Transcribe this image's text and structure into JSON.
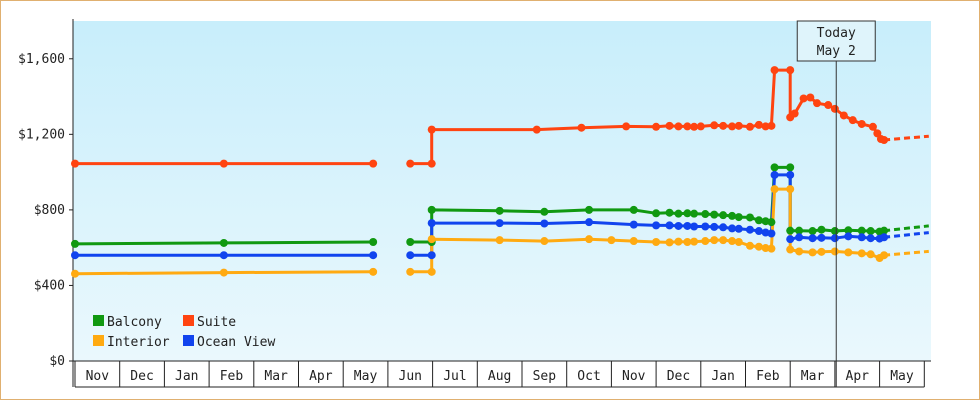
{
  "chart_data": {
    "type": "line",
    "title": "",
    "xlabel": "",
    "ylabel": "",
    "ylim": [
      0,
      1800
    ],
    "y_ticks": [
      {
        "value": 0,
        "label": "$0"
      },
      {
        "value": 400,
        "label": "$400"
      },
      {
        "value": 800,
        "label": "$800"
      },
      {
        "value": 1200,
        "label": "$1,200"
      },
      {
        "value": 1600,
        "label": "$1,600"
      }
    ],
    "x_months": [
      "Nov",
      "Dec",
      "Jan",
      "Feb",
      "Mar",
      "Apr",
      "May",
      "Jun",
      "Jul",
      "Aug",
      "Sep",
      "Oct",
      "Nov",
      "Dec",
      "Jan",
      "Feb",
      "Mar",
      "Apr",
      "May"
    ],
    "today_label": {
      "line1": "Today",
      "line2": "May 2"
    },
    "today_x": 17.03,
    "grid": false,
    "background": {
      "top": "#c8eefb",
      "bottom": "#eaf8fd"
    },
    "legend_position": "bottom-left",
    "series": [
      {
        "name": "Suite",
        "color": "#ff4411",
        "segments": [
          [
            [
              0,
              1045
            ],
            [
              3.33,
              1045
            ],
            [
              6.67,
              1045
            ]
          ],
          [
            [
              7.5,
              1045
            ],
            [
              7.98,
              1045
            ],
            [
              7.98,
              1225
            ],
            [
              10.33,
              1225
            ],
            [
              11.33,
              1235
            ],
            [
              12.33,
              1242
            ],
            [
              13,
              1240
            ],
            [
              13.3,
              1245
            ],
            [
              13.5,
              1242
            ],
            [
              13.7,
              1242
            ],
            [
              13.85,
              1240
            ],
            [
              14,
              1242
            ],
            [
              14.3,
              1248
            ],
            [
              14.5,
              1245
            ],
            [
              14.7,
              1242
            ],
            [
              14.85,
              1245
            ],
            [
              15.1,
              1240
            ],
            [
              15.3,
              1250
            ],
            [
              15.45,
              1242
            ],
            [
              15.58,
              1245
            ],
            [
              15.65,
              1540
            ],
            [
              16,
              1540
            ],
            [
              16,
              1290
            ],
            [
              16.1,
              1310
            ],
            [
              16.3,
              1390
            ],
            [
              16.45,
              1395
            ],
            [
              16.6,
              1365
            ],
            [
              16.85,
              1355
            ],
            [
              17,
              1335
            ],
            [
              17.2,
              1300
            ],
            [
              17.4,
              1275
            ],
            [
              17.6,
              1255
            ],
            [
              17.85,
              1240
            ],
            [
              17.95,
              1205
            ],
            [
              18.03,
              1175
            ],
            [
              18.1,
              1170
            ]
          ]
        ],
        "forecast": [
          [
            18.1,
            1170
          ],
          [
            19.1,
            1190
          ]
        ]
      },
      {
        "name": "Balcony",
        "color": "#119911",
        "segments": [
          [
            [
              0,
              620
            ],
            [
              3.33,
              625
            ],
            [
              6.67,
              630
            ]
          ],
          [
            [
              7.5,
              630
            ],
            [
              7.98,
              630
            ],
            [
              7.98,
              800
            ],
            [
              9.5,
              795
            ],
            [
              10.5,
              790
            ],
            [
              11.5,
              800
            ],
            [
              12.5,
              800
            ],
            [
              13,
              782
            ],
            [
              13.3,
              785
            ],
            [
              13.5,
              780
            ],
            [
              13.7,
              782
            ],
            [
              13.85,
              780
            ],
            [
              14.1,
              778
            ],
            [
              14.3,
              775
            ],
            [
              14.5,
              772
            ],
            [
              14.7,
              768
            ],
            [
              14.85,
              762
            ],
            [
              15.1,
              760
            ],
            [
              15.3,
              745
            ],
            [
              15.45,
              740
            ],
            [
              15.58,
              735
            ],
            [
              15.65,
              1025
            ],
            [
              16,
              1025
            ],
            [
              16,
              690
            ],
            [
              16.2,
              690
            ],
            [
              16.5,
              688
            ],
            [
              16.7,
              695
            ],
            [
              17,
              688
            ],
            [
              17.3,
              692
            ],
            [
              17.6,
              690
            ],
            [
              17.8,
              688
            ],
            [
              18,
              685
            ],
            [
              18.1,
              690
            ]
          ]
        ],
        "forecast": [
          [
            18.1,
            690
          ],
          [
            19.1,
            715
          ]
        ]
      },
      {
        "name": "Ocean View",
        "color": "#1144ee",
        "segments": [
          [
            [
              0,
              560
            ],
            [
              3.33,
              560
            ],
            [
              6.67,
              560
            ]
          ],
          [
            [
              7.5,
              560
            ],
            [
              7.98,
              560
            ],
            [
              7.98,
              730
            ],
            [
              9.5,
              730
            ],
            [
              10.5,
              728
            ],
            [
              11.5,
              735
            ],
            [
              12.5,
              722
            ],
            [
              13,
              718
            ],
            [
              13.3,
              718
            ],
            [
              13.5,
              715
            ],
            [
              13.7,
              715
            ],
            [
              13.85,
              712
            ],
            [
              14.1,
              712
            ],
            [
              14.3,
              710
            ],
            [
              14.5,
              708
            ],
            [
              14.7,
              702
            ],
            [
              14.85,
              700
            ],
            [
              15.1,
              695
            ],
            [
              15.3,
              688
            ],
            [
              15.45,
              680
            ],
            [
              15.58,
              675
            ],
            [
              15.65,
              985
            ],
            [
              16,
              985
            ],
            [
              16,
              645
            ],
            [
              16.2,
              655
            ],
            [
              16.5,
              650
            ],
            [
              16.7,
              652
            ],
            [
              17,
              650
            ],
            [
              17.3,
              660
            ],
            [
              17.6,
              655
            ],
            [
              17.8,
              650
            ],
            [
              18,
              648
            ],
            [
              18.1,
              655
            ]
          ]
        ],
        "forecast": [
          [
            18.1,
            655
          ],
          [
            19.1,
            680
          ]
        ]
      },
      {
        "name": "Interior",
        "color": "#ffaa11",
        "segments": [
          [
            [
              0,
              462
            ],
            [
              3.33,
              468
            ],
            [
              6.67,
              472
            ]
          ],
          [
            [
              7.5,
              472
            ],
            [
              7.98,
              472
            ],
            [
              7.98,
              645
            ],
            [
              9.5,
              640
            ],
            [
              10.5,
              635
            ],
            [
              11.5,
              645
            ],
            [
              12,
              640
            ],
            [
              12.5,
              635
            ],
            [
              13,
              630
            ],
            [
              13.3,
              628
            ],
            [
              13.5,
              632
            ],
            [
              13.7,
              630
            ],
            [
              13.85,
              632
            ],
            [
              14.1,
              635
            ],
            [
              14.3,
              640
            ],
            [
              14.5,
              640
            ],
            [
              14.7,
              635
            ],
            [
              14.85,
              630
            ],
            [
              15.1,
              610
            ],
            [
              15.3,
              605
            ],
            [
              15.45,
              598
            ],
            [
              15.58,
              595
            ],
            [
              15.65,
              910
            ],
            [
              16,
              910
            ],
            [
              16,
              590
            ],
            [
              16.2,
              580
            ],
            [
              16.5,
              575
            ],
            [
              16.7,
              578
            ],
            [
              17,
              580
            ],
            [
              17.3,
              575
            ],
            [
              17.6,
              570
            ],
            [
              17.8,
              565
            ],
            [
              18,
              545
            ],
            [
              18.1,
              560
            ]
          ]
        ],
        "forecast": [
          [
            18.1,
            560
          ],
          [
            19.1,
            580
          ]
        ]
      }
    ],
    "legend": [
      {
        "name": "Balcony",
        "color": "#119911"
      },
      {
        "name": "Suite",
        "color": "#ff4411"
      },
      {
        "name": "Interior",
        "color": "#ffaa11"
      },
      {
        "name": "Ocean View",
        "color": "#1144ee"
      }
    ]
  }
}
